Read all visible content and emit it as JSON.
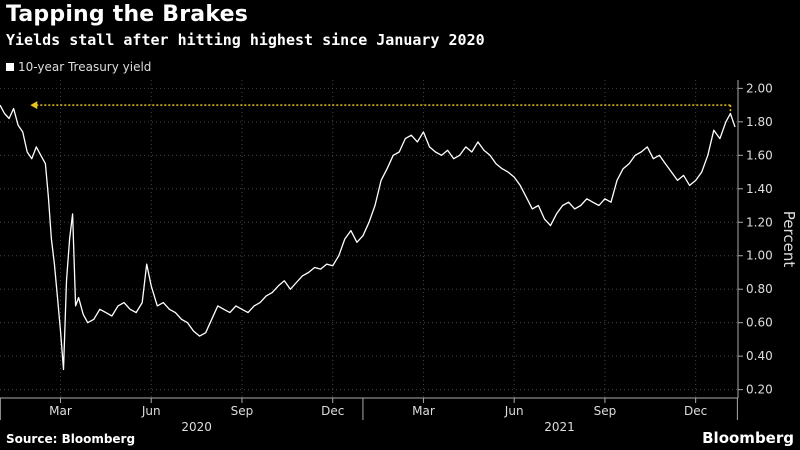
{
  "chart_data": {
    "type": "line",
    "title": "Tapping the Brakes",
    "subtitle": "Yields stall after hitting highest since January 2020",
    "ylabel": "Percent",
    "ylim": [
      0.15,
      2.05
    ],
    "yticks": [
      "2.00",
      "1.80",
      "1.60",
      "1.40",
      "1.20",
      "1.00",
      "0.80",
      "0.60",
      "0.40",
      "0.20"
    ],
    "ytick_values": [
      2.0,
      1.8,
      1.6,
      1.4,
      1.2,
      1.0,
      0.8,
      0.6,
      0.4,
      0.2
    ],
    "xticks": [
      {
        "label": "Mar",
        "x": 2.0
      },
      {
        "label": "Jun",
        "x": 5.0
      },
      {
        "label": "Sep",
        "x": 8.0
      },
      {
        "label": "Dec",
        "x": 11.0
      },
      {
        "label": "Mar",
        "x": 14.0
      },
      {
        "label": "Jun",
        "x": 17.0
      },
      {
        "label": "Sep",
        "x": 20.0
      },
      {
        "label": "Dec",
        "x": 23.0
      }
    ],
    "years": [
      {
        "label": "2020",
        "x": 6.5
      },
      {
        "label": "2021",
        "x": 18.5
      }
    ],
    "xlim": [
      0.0,
      24.4
    ],
    "grid": true,
    "reference_line": {
      "y": 1.9,
      "color": "#e8c41c"
    },
    "series": [
      {
        "name": "10-year Treasury yield",
        "color": "#ffffff",
        "x": [
          0.0,
          0.15,
          0.3,
          0.45,
          0.6,
          0.75,
          0.9,
          1.05,
          1.2,
          1.35,
          1.5,
          1.6,
          1.7,
          1.8,
          1.9,
          2.0,
          2.1,
          2.2,
          2.3,
          2.4,
          2.5,
          2.6,
          2.75,
          2.9,
          3.1,
          3.3,
          3.5,
          3.7,
          3.9,
          4.1,
          4.3,
          4.5,
          4.7,
          4.85,
          5.0,
          5.2,
          5.4,
          5.6,
          5.8,
          6.0,
          6.2,
          6.4,
          6.6,
          6.8,
          7.0,
          7.2,
          7.4,
          7.6,
          7.8,
          8.0,
          8.2,
          8.4,
          8.6,
          8.8,
          9.0,
          9.2,
          9.4,
          9.6,
          9.8,
          10.0,
          10.2,
          10.4,
          10.6,
          10.8,
          11.0,
          11.2,
          11.4,
          11.6,
          11.8,
          12.0,
          12.2,
          12.4,
          12.6,
          12.8,
          13.0,
          13.2,
          13.4,
          13.6,
          13.8,
          14.0,
          14.2,
          14.4,
          14.6,
          14.8,
          15.0,
          15.2,
          15.4,
          15.6,
          15.8,
          16.0,
          16.2,
          16.4,
          16.6,
          16.8,
          17.0,
          17.2,
          17.4,
          17.6,
          17.8,
          18.0,
          18.2,
          18.4,
          18.6,
          18.8,
          19.0,
          19.2,
          19.4,
          19.6,
          19.8,
          20.0,
          20.2,
          20.4,
          20.6,
          20.8,
          21.0,
          21.2,
          21.4,
          21.6,
          21.8,
          22.0,
          22.2,
          22.4,
          22.6,
          22.8,
          23.0,
          23.2,
          23.4,
          23.6,
          23.8,
          24.0,
          24.15,
          24.3
        ],
        "values": [
          1.9,
          1.85,
          1.82,
          1.88,
          1.78,
          1.74,
          1.62,
          1.58,
          1.65,
          1.6,
          1.55,
          1.35,
          1.1,
          0.95,
          0.75,
          0.55,
          0.32,
          0.85,
          1.1,
          1.25,
          0.7,
          0.75,
          0.65,
          0.6,
          0.62,
          0.68,
          0.66,
          0.64,
          0.7,
          0.72,
          0.68,
          0.66,
          0.72,
          0.95,
          0.82,
          0.7,
          0.72,
          0.68,
          0.66,
          0.62,
          0.6,
          0.55,
          0.52,
          0.54,
          0.62,
          0.7,
          0.68,
          0.66,
          0.7,
          0.68,
          0.66,
          0.7,
          0.72,
          0.76,
          0.78,
          0.82,
          0.85,
          0.8,
          0.84,
          0.88,
          0.9,
          0.93,
          0.92,
          0.95,
          0.94,
          1.0,
          1.1,
          1.15,
          1.08,
          1.12,
          1.2,
          1.3,
          1.45,
          1.52,
          1.6,
          1.62,
          1.7,
          1.72,
          1.68,
          1.74,
          1.65,
          1.62,
          1.6,
          1.63,
          1.58,
          1.6,
          1.65,
          1.62,
          1.68,
          1.63,
          1.6,
          1.55,
          1.52,
          1.5,
          1.47,
          1.42,
          1.35,
          1.28,
          1.3,
          1.22,
          1.18,
          1.25,
          1.3,
          1.32,
          1.28,
          1.3,
          1.34,
          1.32,
          1.3,
          1.34,
          1.32,
          1.45,
          1.52,
          1.55,
          1.6,
          1.62,
          1.65,
          1.58,
          1.6,
          1.55,
          1.5,
          1.45,
          1.48,
          1.42,
          1.45,
          1.5,
          1.6,
          1.75,
          1.7,
          1.8,
          1.85,
          1.77
        ]
      }
    ]
  },
  "source": "Source: Bloomberg",
  "brand": "Bloomberg"
}
